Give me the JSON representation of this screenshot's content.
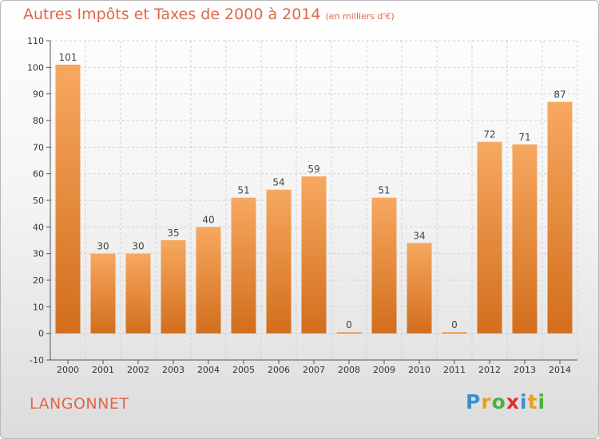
{
  "header": {
    "title": "Autres Impôts et Taxes de 2000 à 2014",
    "unit": "(en milliers d'€)"
  },
  "footer": {
    "commune": "LANGONNET",
    "logo_letters": [
      "P",
      "r",
      "o",
      "x",
      "i",
      "t",
      "i"
    ],
    "logo_colors": [
      "#3a8fd0",
      "#e8a020",
      "#4ab040",
      "#e03030",
      "#3a8fd0",
      "#e8a020",
      "#4ab040"
    ]
  },
  "chart_data": {
    "type": "bar",
    "title": "Autres Impôts et Taxes de 2000 à 2014",
    "categories": [
      "2000",
      "2001",
      "2002",
      "2003",
      "2004",
      "2005",
      "2006",
      "2007",
      "2008",
      "2009",
      "2010",
      "2011",
      "2012",
      "2013",
      "2014"
    ],
    "values": [
      101,
      30,
      30,
      35,
      40,
      51,
      54,
      59,
      0,
      51,
      34,
      0,
      72,
      71,
      87
    ],
    "ylim": [
      -10,
      110
    ],
    "yticks": [
      -10,
      0,
      10,
      20,
      30,
      40,
      50,
      60,
      70,
      80,
      90,
      100,
      110
    ],
    "grid": true,
    "bar_color": "#f0923a",
    "bar_color_dark": "#d26e1c"
  }
}
